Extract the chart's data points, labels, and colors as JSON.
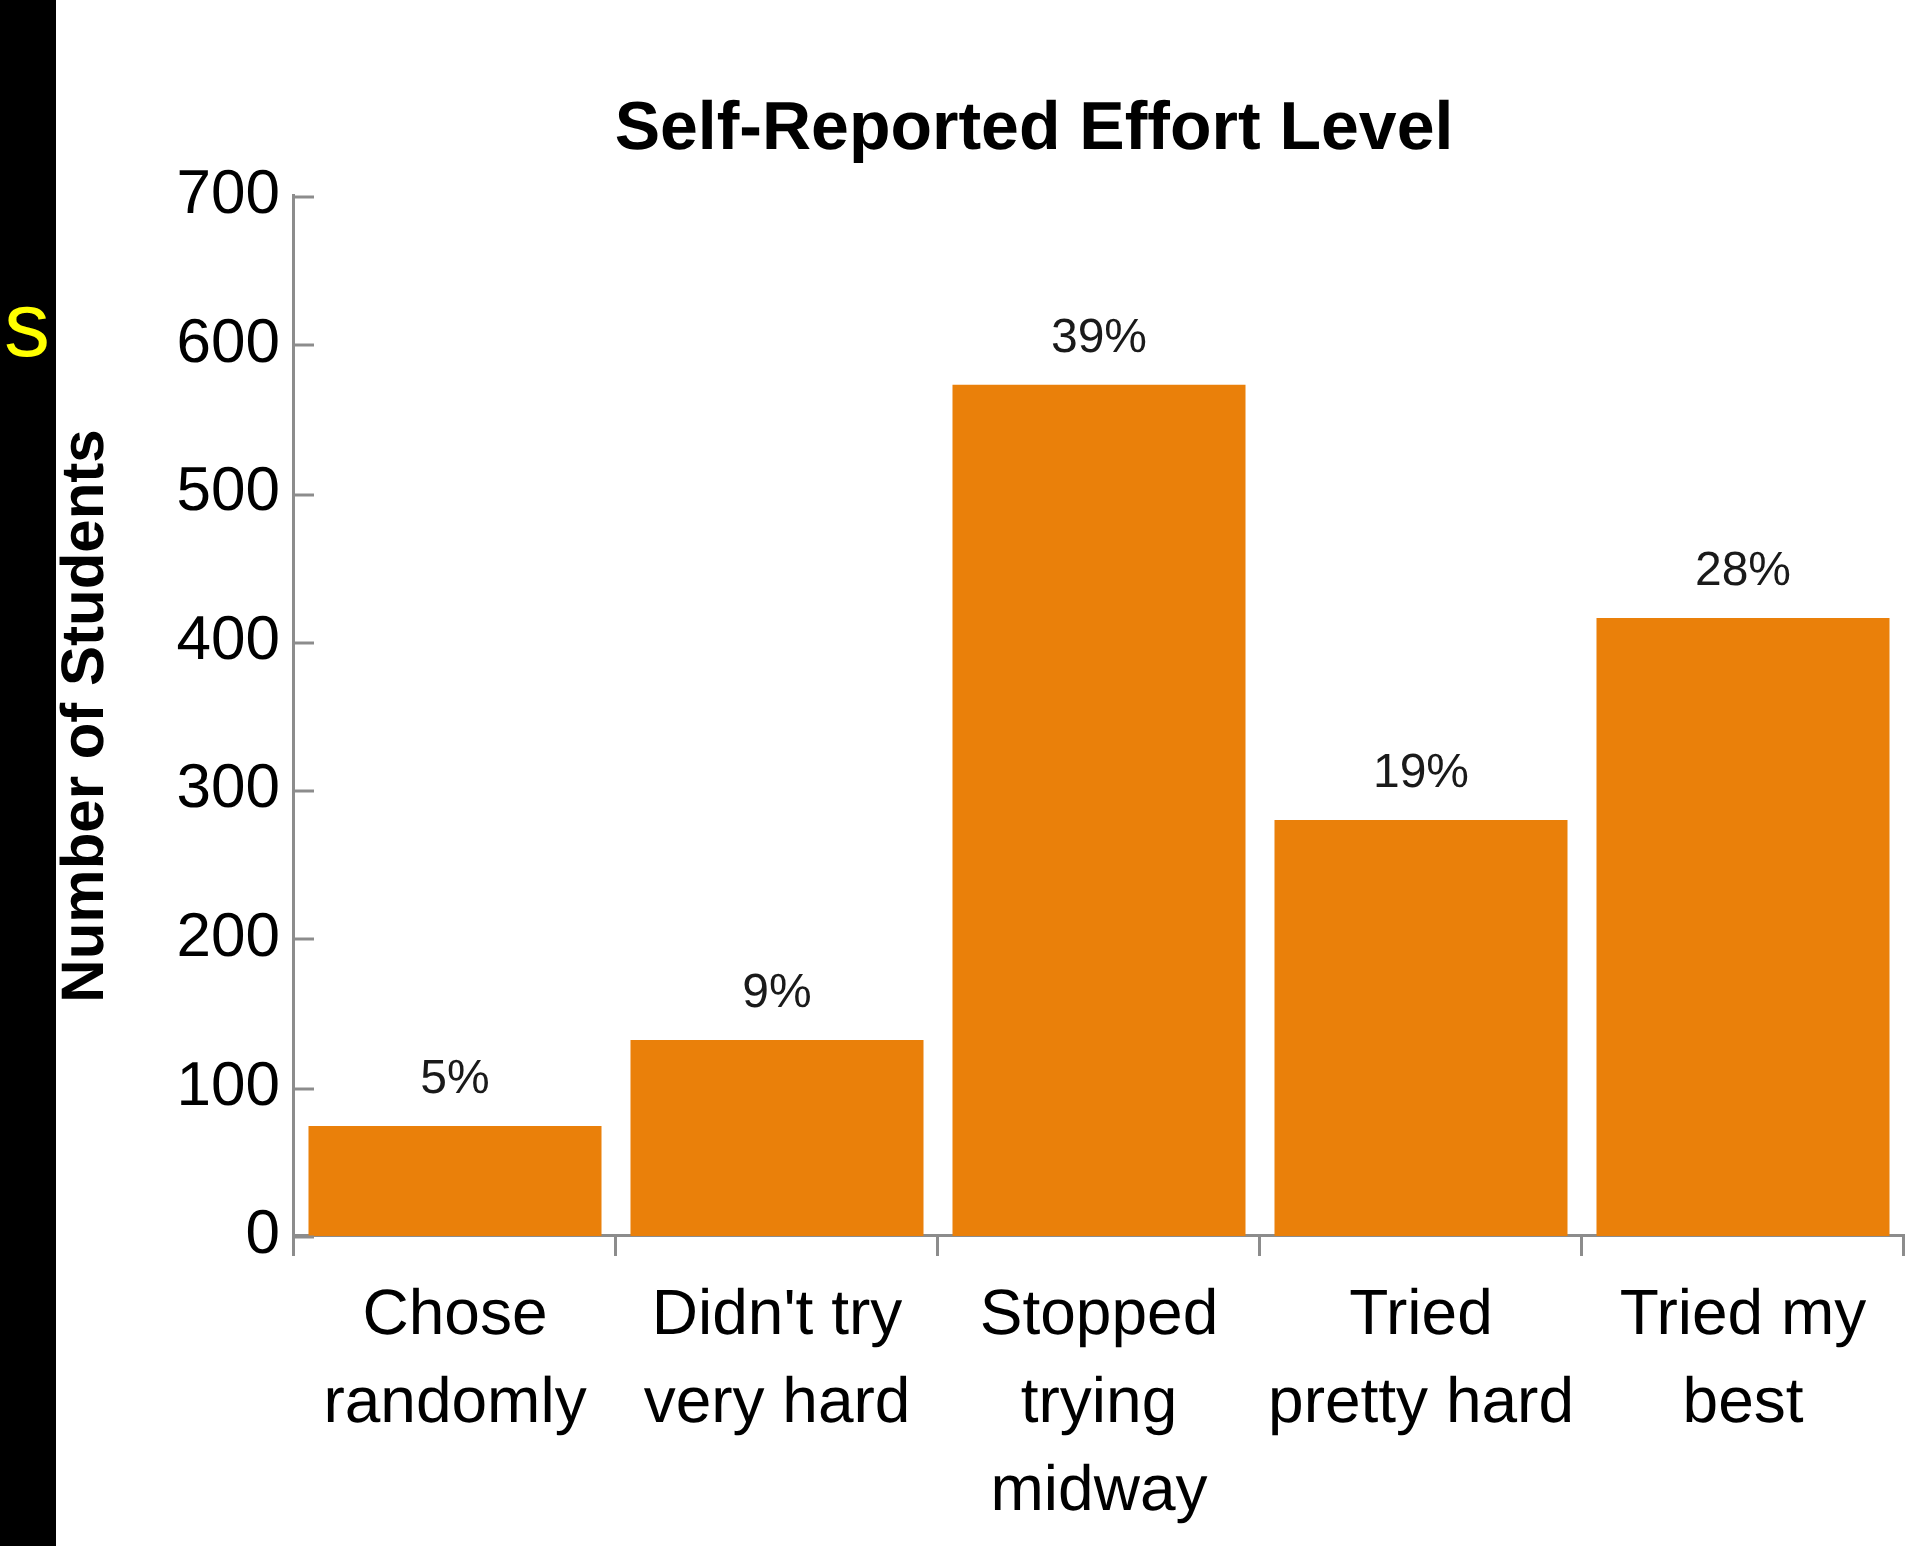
{
  "chart_data": {
    "type": "bar",
    "title": "Self-Reported Effort Level",
    "ylabel": "Number of Students",
    "categories": [
      "Chose randomly",
      "Didn't try very hard",
      "Stopped trying midway",
      "Tried pretty hard",
      "Tried my best"
    ],
    "values": [
      74,
      132,
      573,
      280,
      416
    ],
    "color": "#ea800a",
    "ylim": [
      0,
      700
    ],
    "yticks": [
      0,
      100,
      200,
      300,
      400,
      500,
      600,
      700
    ],
    "annotations": [
      "s",
      {
        "text": "5%",
        "x": "Chose randomly",
        "y": 74
      },
      {
        "text": "9%",
        "x": "Didn't try very hard",
        "y": 132
      },
      {
        "text": "39%",
        "x": "Stopped trying midway",
        "y": 573
      },
      {
        "text": "19%",
        "x": "Tried pretty hard",
        "y": 280
      },
      {
        "text": "28%",
        "x": "Tried my best",
        "y": 416
      }
    ]
  }
}
